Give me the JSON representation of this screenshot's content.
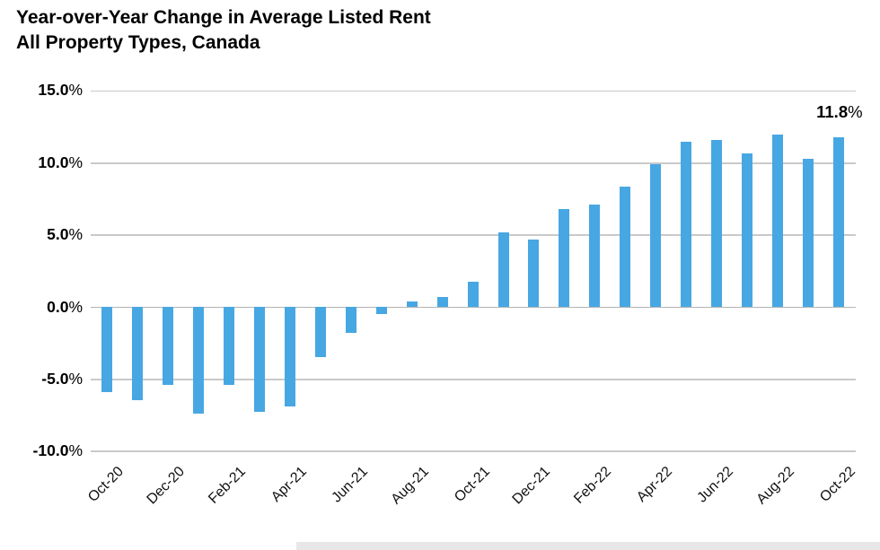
{
  "chart_data": {
    "type": "bar",
    "title": "Year-over-Year Change in Average Listed Rent",
    "subtitle": "All Property Types, Canada",
    "series_name": "Year-over-year change in average listed rent (%)",
    "categories": [
      "Oct-20",
      "Nov-20",
      "Dec-20",
      "Jan-21",
      "Feb-21",
      "Mar-21",
      "Apr-21",
      "May-21",
      "Jun-21",
      "Jul-21",
      "Aug-21",
      "Sep-21",
      "Oct-21",
      "Nov-21",
      "Dec-21",
      "Jan-22",
      "Feb-22",
      "Mar-22",
      "Apr-22",
      "May-22",
      "Jun-22",
      "Jul-22",
      "Aug-22",
      "Sep-22",
      "Oct-22"
    ],
    "values": [
      -5.9,
      -6.5,
      -5.4,
      -7.4,
      -5.4,
      -7.3,
      -6.9,
      -3.5,
      -1.8,
      -0.5,
      0.4,
      0.7,
      1.8,
      5.2,
      4.7,
      6.8,
      7.1,
      8.4,
      9.9,
      11.5,
      11.6,
      10.7,
      12.0,
      10.3,
      11.8
    ],
    "xlabel": "",
    "ylabel": "",
    "ylim": [
      -10,
      15
    ],
    "y_ticks": [
      {
        "value": 15,
        "label": "15.0%"
      },
      {
        "value": 10,
        "label": "10.0%"
      },
      {
        "value": 5,
        "label": "5.0%"
      },
      {
        "value": 0,
        "label": "0.0%"
      },
      {
        "value": -5,
        "label": "-5.0%"
      },
      {
        "value": -10,
        "label": "-10.0%"
      }
    ],
    "x_tick_labels": [
      "Oct-20",
      "Dec-20",
      "Feb-21",
      "Apr-21",
      "Jun-21",
      "Aug-21",
      "Oct-21",
      "Dec-21",
      "Feb-22",
      "Apr-22",
      "Jun-22",
      "Aug-22",
      "Oct-22"
    ],
    "x_tick_every": 2,
    "annotation": {
      "label": "11.8%",
      "target_category": "Oct-22"
    },
    "legend_position": "none",
    "grid": "horizontal",
    "colors": {
      "bar": "#47a7e3",
      "gridline": "#c9c9c9",
      "zero_line": "#b3b3b3",
      "text": "#000000"
    }
  }
}
